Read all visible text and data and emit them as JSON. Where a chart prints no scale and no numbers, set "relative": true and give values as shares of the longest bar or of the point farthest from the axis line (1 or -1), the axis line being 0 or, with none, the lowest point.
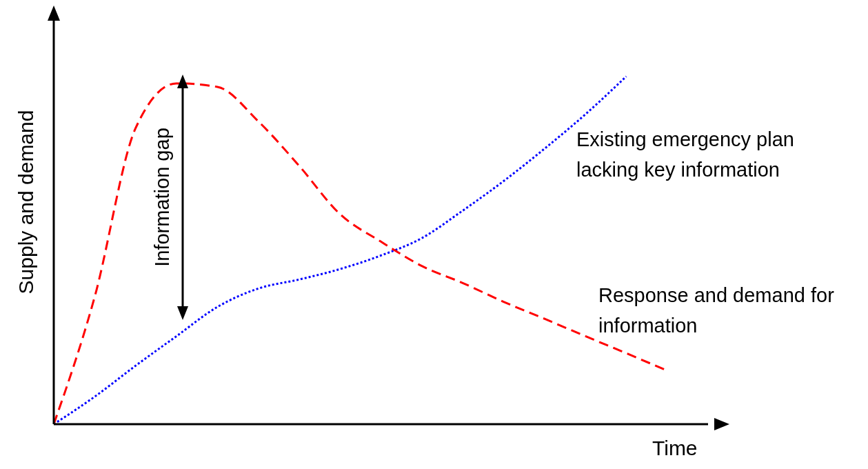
{
  "chart_data": {
    "type": "line",
    "relative": true,
    "xlabel": "Time",
    "ylabel": "Supply and demand",
    "annotations": [
      "Information gap"
    ],
    "legend": false,
    "marker": "none",
    "categories": [
      null,
      null,
      null,
      null,
      null,
      null,
      null,
      null,
      null,
      null,
      null,
      null,
      null,
      null,
      null,
      null,
      null
    ],
    "series": [
      {
        "name": "Existing emergency plan lacking key information",
        "color": "#0000ff",
        "line_style": "dotted",
        "values": [
          0,
          0.079,
          0.168,
          0.253,
          0.337,
          0.39,
          0.416,
          0.446,
          0.485,
          0.535,
          0.614,
          0.699,
          0.792,
          0.891,
          1,
          null,
          null
        ]
      },
      {
        "name": "Response and demand for information",
        "color": "#ff0000",
        "line_style": "dashed",
        "values": [
          0,
          0.366,
          0.851,
          0.98,
          0.97,
          0.871,
          0.743,
          0.604,
          0.525,
          0.455,
          0.406,
          0.352,
          0.303,
          0.253,
          0.204,
          0.154,
          null
        ]
      }
    ]
  }
}
